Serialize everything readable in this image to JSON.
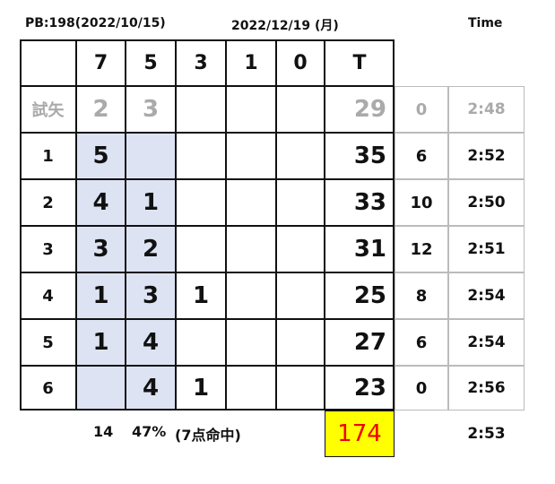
{
  "header": {
    "pb": "PB:198(2022/10/15)",
    "date": "2022/12/19 (月)",
    "time": "Time"
  },
  "table": {
    "columns": [
      "7",
      "5",
      "3",
      "1",
      "0",
      "T"
    ],
    "trial": {
      "label": "試矢",
      "cells": [
        "2",
        "3",
        null,
        null,
        null
      ],
      "total": "29",
      "diff": "0",
      "time": "2:48"
    },
    "rows": [
      {
        "label": "1",
        "cells": [
          "5",
          null,
          null,
          null,
          null
        ],
        "total": "35",
        "diff": "6",
        "time": "2:52"
      },
      {
        "label": "2",
        "cells": [
          "4",
          "1",
          null,
          null,
          null
        ],
        "total": "33",
        "diff": "10",
        "time": "2:50"
      },
      {
        "label": "3",
        "cells": [
          "3",
          "2",
          null,
          null,
          null
        ],
        "total": "31",
        "diff": "12",
        "time": "2:51"
      },
      {
        "label": "4",
        "cells": [
          "1",
          "3",
          "1",
          null,
          null
        ],
        "total": "25",
        "diff": "8",
        "time": "2:54"
      },
      {
        "label": "5",
        "cells": [
          "1",
          "4",
          null,
          null,
          null
        ],
        "total": "27",
        "diff": "6",
        "time": "2:54"
      },
      {
        "label": "6",
        "cells": [
          null,
          "4",
          "1",
          null,
          null
        ],
        "total": "23",
        "diff": "0",
        "time": "2:56"
      }
    ],
    "footer": {
      "hits": "14",
      "rate": "47%",
      "note": "(7点命中)",
      "total": "174",
      "time": "2:53"
    }
  }
}
